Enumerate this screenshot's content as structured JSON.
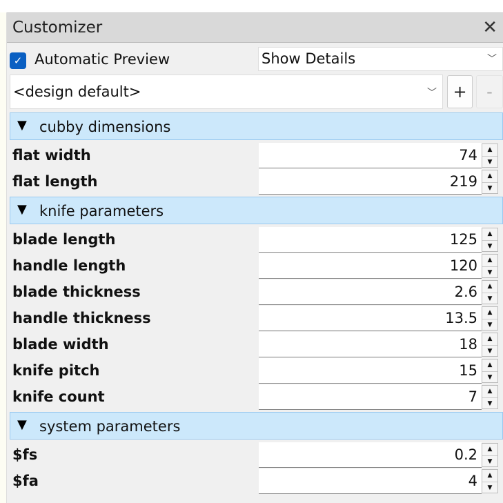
{
  "title": "Customizer",
  "auto_preview": {
    "label": "Automatic Preview",
    "checked": true
  },
  "details_select": "Show Details",
  "preset_select": "<design default>",
  "add_label": "+",
  "remove_label": "-",
  "groups": [
    {
      "label": "cubby dimensions",
      "params": [
        {
          "label": "flat width",
          "value": "74"
        },
        {
          "label": "flat length",
          "value": "219"
        }
      ]
    },
    {
      "label": "knife parameters",
      "params": [
        {
          "label": "blade length",
          "value": "125"
        },
        {
          "label": "handle length",
          "value": "120"
        },
        {
          "label": "blade thickness",
          "value": "2.6"
        },
        {
          "label": "handle thickness",
          "value": "13.5"
        },
        {
          "label": "blade width",
          "value": "18"
        },
        {
          "label": "knife pitch",
          "value": "15"
        },
        {
          "label": "knife count",
          "value": "7"
        }
      ]
    },
    {
      "label": "system parameters",
      "params": [
        {
          "label": "$fs",
          "value": "0.2"
        },
        {
          "label": "$fa",
          "value": "4"
        }
      ]
    }
  ],
  "colors": {
    "accent": "#0a5fc2",
    "group_bg": "#cce8fb"
  }
}
